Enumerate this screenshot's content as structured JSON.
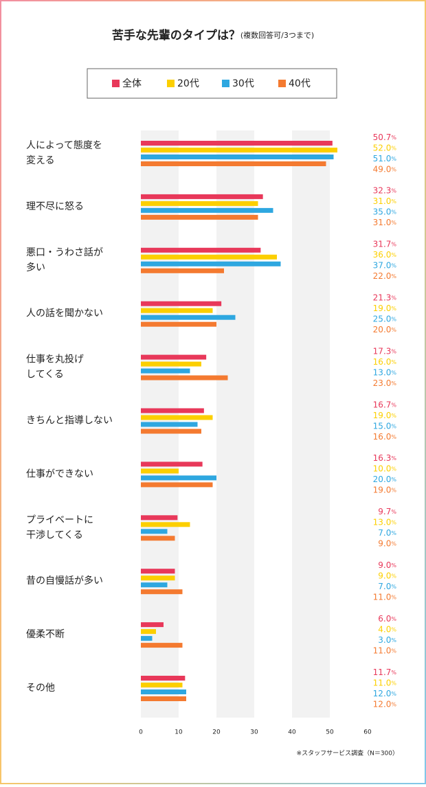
{
  "chart_data": {
    "type": "bar",
    "orientation": "horizontal",
    "title": "苦手な先輩のタイプは？",
    "subtitle": "(複数回答可/3つまで)",
    "categories": [
      "人によって態度を\n変える",
      "理不尽に怒る",
      "悪口・うわさ話が\n多い",
      "人の話を聞かない",
      "仕事を丸投げ\nしてくる",
      "きちんと指導しない",
      "仕事ができない",
      "プライベートに\n干渉してくる",
      "昔の自慢話が多い",
      "優柔不断",
      "その他"
    ],
    "series": [
      {
        "name": "全体",
        "color": "#e8385a",
        "values": [
          50.7,
          32.3,
          31.7,
          21.3,
          17.3,
          16.7,
          16.3,
          9.7,
          9.0,
          6.0,
          11.7
        ],
        "value_labels": [
          "50.7%",
          "32.3%",
          "31.7%",
          "21.3%",
          "17.3%",
          "16.7%",
          "16.3%",
          "9.7%",
          "9.0%",
          "6.0%",
          "11.7%"
        ]
      },
      {
        "name": "20代",
        "color": "#fccf00",
        "values": [
          52.0,
          31.0,
          36.0,
          19.0,
          16.0,
          19.0,
          10.0,
          13.0,
          9.0,
          4.0,
          11.0
        ],
        "value_labels": [
          "52.0%",
          "31.0%",
          "36.0%",
          "19.0%",
          "16.0%",
          "19.0%",
          "10.0%",
          "13.0%",
          "9.0%",
          "4.0%",
          "11.0%"
        ]
      },
      {
        "name": "30代",
        "color": "#2ea7e0",
        "values": [
          51.0,
          35.0,
          37.0,
          25.0,
          13.0,
          15.0,
          20.0,
          7.0,
          7.0,
          3.0,
          12.0
        ],
        "value_labels": [
          "51.0%",
          "35.0%",
          "37.0%",
          "25.0%",
          "13.0%",
          "15.0%",
          "20.0%",
          "7.0%",
          "7.0%",
          "3.0%",
          "12.0%"
        ]
      },
      {
        "name": "40代",
        "color": "#f47a30",
        "values": [
          49.0,
          31.0,
          22.0,
          20.0,
          23.0,
          16.0,
          19.0,
          9.0,
          11.0,
          11.0,
          12.0
        ],
        "value_labels": [
          "49.0%",
          "31.0%",
          "22.0%",
          "20.0%",
          "23.0%",
          "16.0%",
          "19.0%",
          "9.0%",
          "11.0%",
          "11.0%",
          "12.0%"
        ]
      }
    ],
    "xlim": [
      0,
      60
    ],
    "xticks": [
      0,
      10,
      20,
      30,
      40,
      50,
      60
    ],
    "grid": "bands",
    "note": "※スタッフサービス調査（N＝300）"
  }
}
